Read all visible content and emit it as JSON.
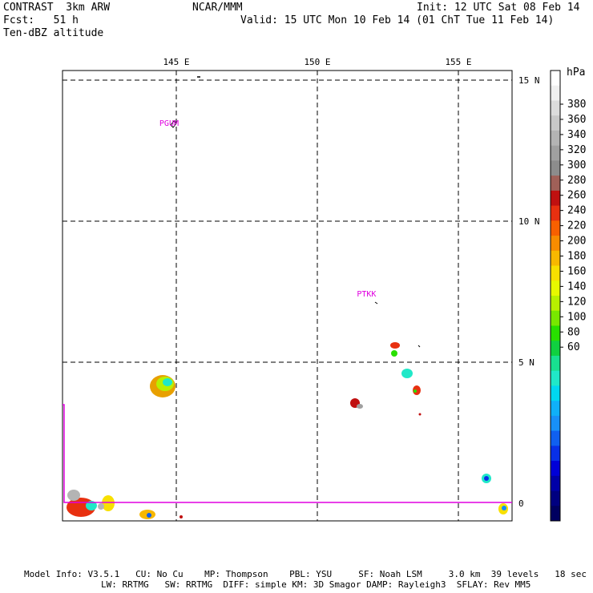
{
  "header": {
    "left_line1": "CONTRAST  3km ARW",
    "left_line2": "Fcst:   51 h",
    "left_line3": "Ten-dBZ altitude",
    "center": "NCAR/MMM",
    "right_line1": "Init: 12 UTC Sat 08 Feb 14",
    "right_line2": "Valid: 15 UTC Mon 10 Feb 14 (01 ChT Tue 11 Feb 14)"
  },
  "map": {
    "lon_ticks": [
      {
        "label": "145 E",
        "lon": 145
      },
      {
        "label": "150 E",
        "lon": 150
      },
      {
        "label": "155 E",
        "lon": 155
      }
    ],
    "lat_ticks": [
      {
        "label": "15 N",
        "lat": 15
      },
      {
        "label": "10 N",
        "lat": 10
      },
      {
        "label": "5 N",
        "lat": 5
      },
      {
        "label": "0",
        "lat": 0
      }
    ],
    "stations": [
      {
        "id": "PGUM",
        "lon": 144.8,
        "lat": 13.5
      },
      {
        "id": "PTKK",
        "lon": 151.8,
        "lat": 7.45
      }
    ]
  },
  "colorbar": {
    "unit": "hPa",
    "labels": [
      "380",
      "360",
      "340",
      "320",
      "300",
      "280",
      "260",
      "240",
      "220",
      "200",
      "180",
      "160",
      "140",
      "120",
      "100",
      "80",
      "60"
    ],
    "colors": [
      "#ffffff",
      "#f0f0f0",
      "#dcdcdc",
      "#c8c8c8",
      "#b4b4b4",
      "#a0a0a0",
      "#8c8c8c",
      "#a06058",
      "#c01010",
      "#e83010",
      "#f86000",
      "#f88c00",
      "#f8b800",
      "#f8e000",
      "#e8f800",
      "#b8f000",
      "#78e800",
      "#28e000",
      "#10d040",
      "#18e090",
      "#20e8c8",
      "#00d8f0",
      "#10b0f8",
      "#1890f8",
      "#1060f0",
      "#0830e8",
      "#0000d8",
      "#0000a8",
      "#000080",
      "#000060"
    ]
  },
  "footer": {
    "line1": "Model Info: V3.5.1   CU: No Cu    MP: Thompson    PBL: YSU     SF: Noah LSM     3.0 km  39 levels   18 sec",
    "line2": "LW: RRTMG   SW: RRTMG  DIFF: simple KM: 3D Smagor DAMP: Rayleigh3  SFLAY: Rev MM5"
  }
}
